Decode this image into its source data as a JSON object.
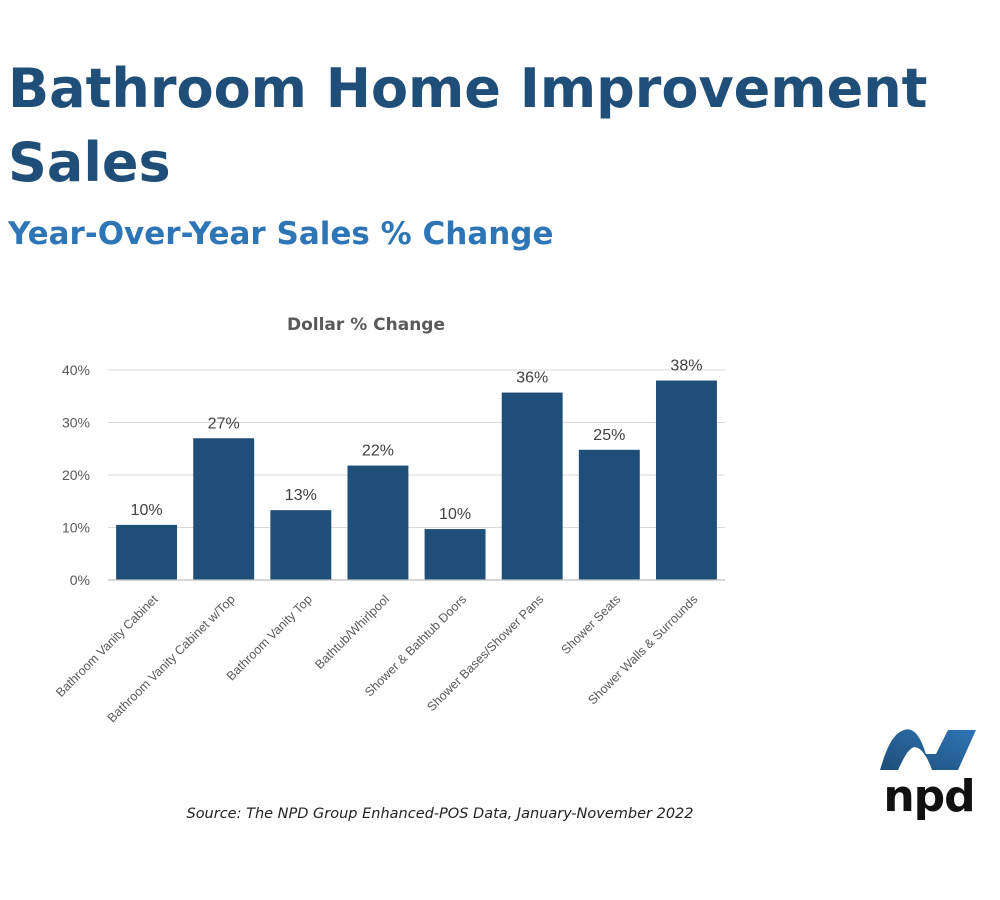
{
  "header": {
    "title": "Bathroom Home Improvement Sales",
    "subtitle": "Year-Over-Year Sales % Change"
  },
  "chart_data": {
    "type": "bar",
    "title": "Dollar % Change",
    "xlabel": "",
    "ylabel": "",
    "categories": [
      "Bathroom Vanity Cabinet",
      "Bathroom Vanity Cabinet w/Top",
      "Bathroom Vanity Top",
      "Bathtub/Whirlpool",
      "Shower & Bathtub Doors",
      "Shower Bases/Shower Pans",
      "Shower Seats",
      "Shower Walls & Surrounds"
    ],
    "values": [
      10,
      27,
      13,
      22,
      10,
      36,
      25,
      38
    ],
    "plot_values": [
      10.5,
      27,
      13.3,
      21.8,
      9.7,
      35.7,
      24.8,
      38
    ],
    "data_labels": [
      "10%",
      "27%",
      "13%",
      "22%",
      "10%",
      "36%",
      "25%",
      "38%"
    ],
    "ylim": [
      0,
      40
    ],
    "yticks": [
      0,
      10,
      20,
      30,
      40
    ],
    "ytick_labels": [
      "0%",
      "10%",
      "20%",
      "30%",
      "40%"
    ],
    "grid": true,
    "bar_color": "#1f4e79"
  },
  "footer": {
    "source": "Source: The NPD Group Enhanced-POS Data, January-November 2022"
  },
  "logo": {
    "text": "npd",
    "colors": [
      "#1f4e79",
      "#2e75b6",
      "#111111"
    ]
  }
}
